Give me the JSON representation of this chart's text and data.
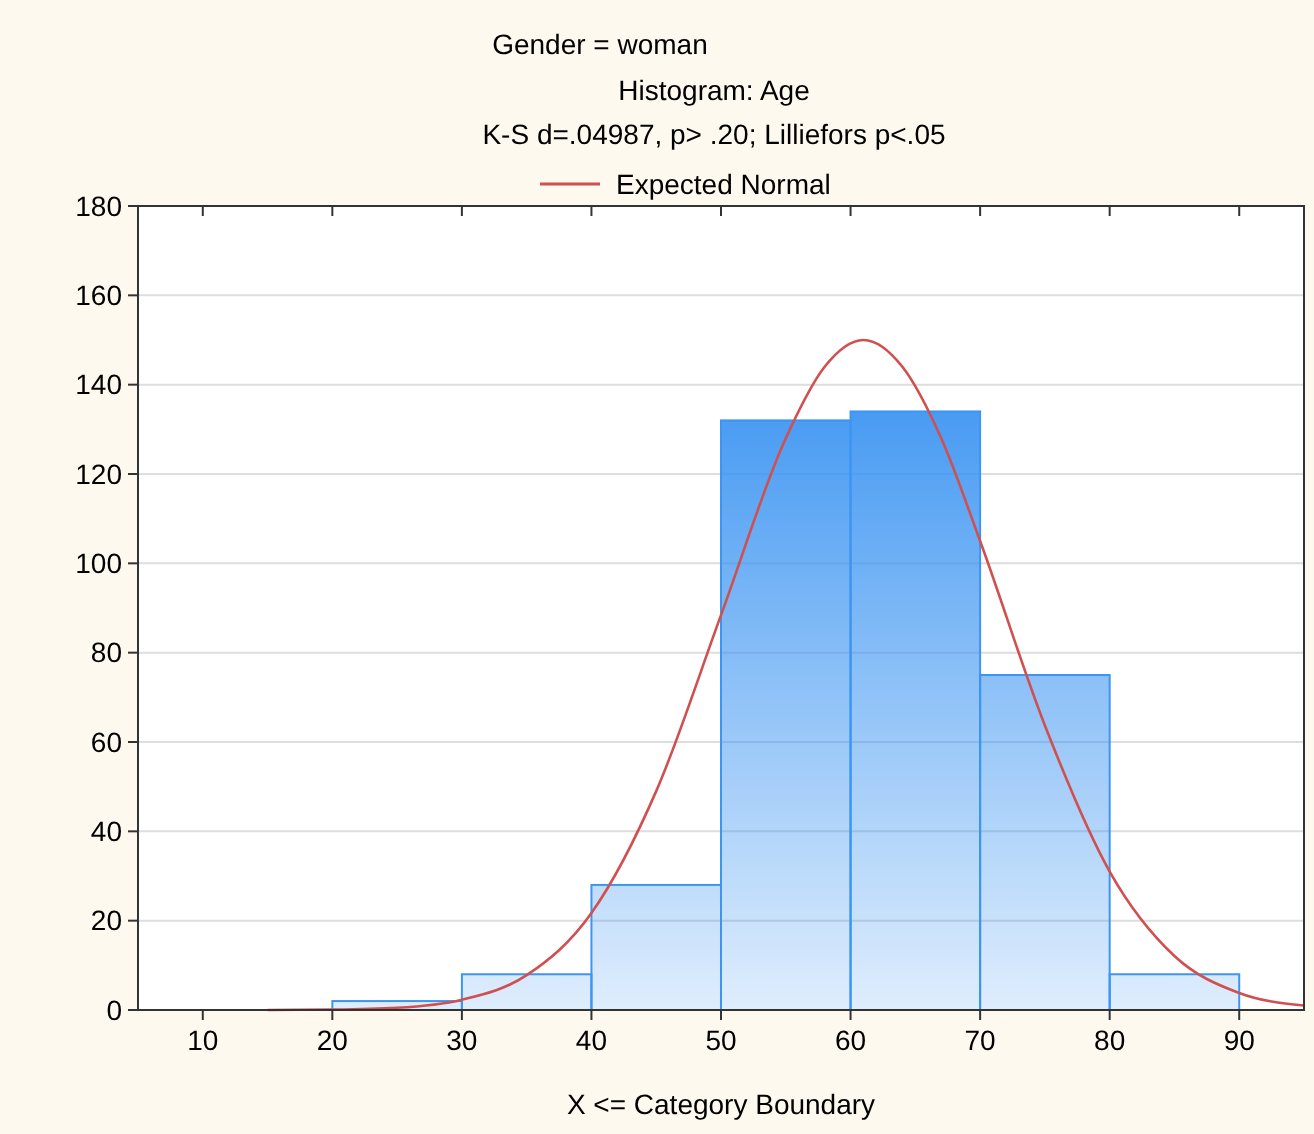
{
  "chart_data": {
    "type": "histogram",
    "title": "Gender = woman",
    "subtitle": "Histogram: Age",
    "annotations": [
      "K-S d=.04987, p> .20; Lilliefors p<.05"
    ],
    "xlabel": "X <= Category Boundary",
    "bins": [
      20,
      30,
      40,
      50,
      60,
      70,
      80,
      90
    ],
    "values": [
      2,
      8,
      28,
      132,
      134,
      75,
      8
    ],
    "color": "#3d95f2",
    "series": [
      {
        "type": "line",
        "name": "Expected Normal",
        "color": "#d05050",
        "x": [
          15,
          20,
          25,
          30,
          35,
          40,
          45,
          50,
          55,
          58,
          61,
          64,
          67,
          70,
          75,
          80,
          85,
          90,
          95
        ],
        "values": [
          0,
          0.1,
          0.5,
          2.3,
          7.8,
          21.7,
          49,
          88.4,
          128,
          144,
          150,
          144,
          128,
          105,
          63.7,
          31,
          12.1,
          3.8,
          1
        ]
      }
    ],
    "xlim": [
      5,
      95
    ],
    "xticks": [
      10,
      20,
      30,
      40,
      50,
      60,
      70,
      80,
      90
    ],
    "ylim": [
      0,
      180
    ],
    "yticks": [
      0,
      20,
      40,
      60,
      80,
      100,
      120,
      140,
      160,
      180
    ],
    "grid": "y",
    "legend": "top"
  }
}
